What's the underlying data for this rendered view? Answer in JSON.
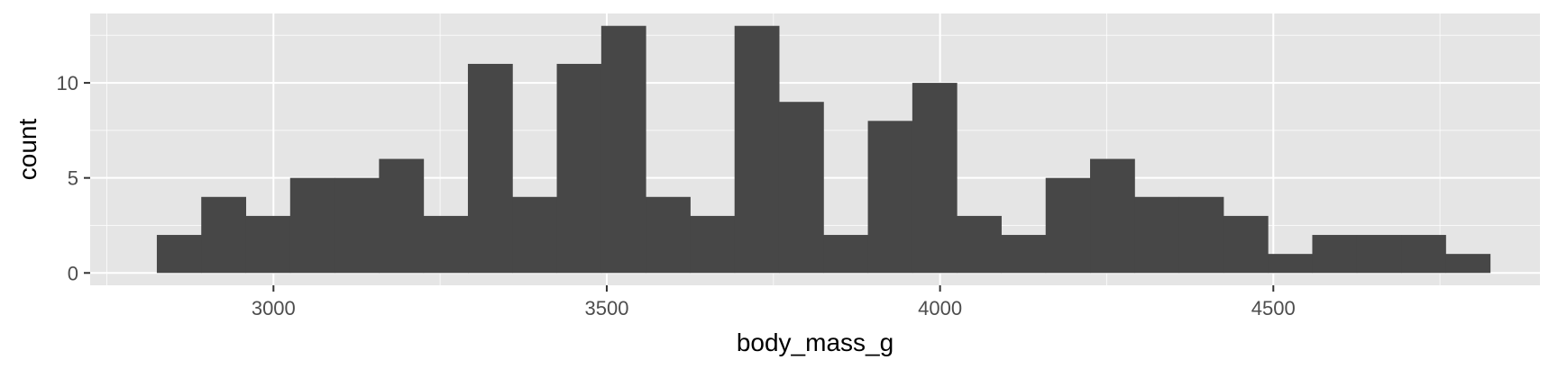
{
  "chart_data": {
    "type": "bar",
    "histogram": true,
    "xlabel": "body_mass_g",
    "ylabel": "count",
    "xlim": [
      2725,
      4900
    ],
    "ylim": [
      -0.65,
      13.65
    ],
    "x_ticks": [
      3000,
      3500,
      4000,
      4500
    ],
    "y_ticks": [
      0,
      5,
      10
    ],
    "grid": true,
    "bin_width": 66.67,
    "bin_start": 2825,
    "values": [
      2,
      4,
      3,
      5,
      5,
      6,
      3,
      11,
      4,
      11,
      13,
      4,
      3,
      13,
      9,
      2,
      8,
      10,
      3,
      2,
      5,
      6,
      4,
      4,
      3,
      1,
      2,
      2,
      2,
      1
    ]
  },
  "colors": {
    "panel_background": "#e5e5e5",
    "grid_major": "#ffffff",
    "bar_fill": "#474747"
  }
}
